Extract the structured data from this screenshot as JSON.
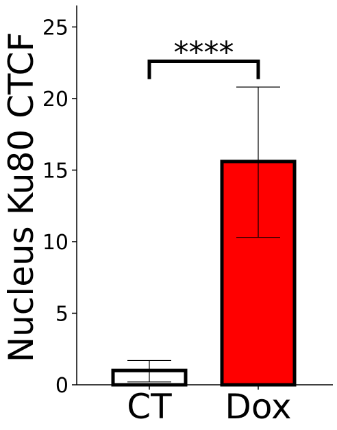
{
  "chart_data": {
    "type": "bar",
    "title": "",
    "xlabel": "",
    "ylabel": "Nucleus Ku80 CTCF",
    "ylim": [
      0,
      26.5
    ],
    "yticks": [
      0,
      5,
      10,
      15,
      20,
      25
    ],
    "grid": false,
    "categories": [
      "CT",
      "Dox"
    ],
    "values": [
      1.0,
      15.6
    ],
    "error_low": [
      0.2,
      10.3
    ],
    "error_high": [
      1.7,
      20.8
    ],
    "bar_colors": [
      "#ffffff",
      "#ff0000"
    ],
    "edge_color": "#000000",
    "significance": {
      "from": 0,
      "to": 1,
      "label": "****",
      "height": 22.6
    }
  }
}
